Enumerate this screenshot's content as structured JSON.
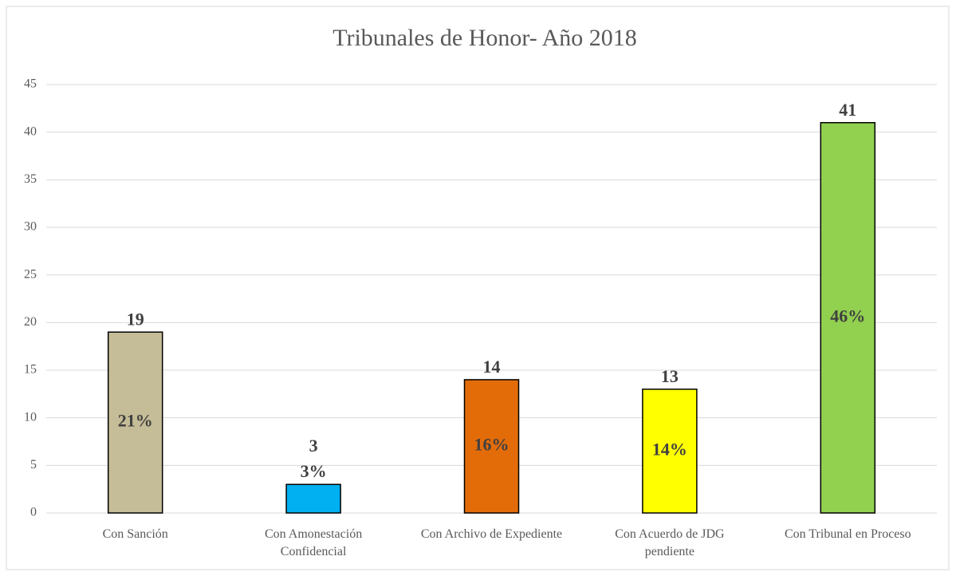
{
  "chart_data": {
    "type": "bar",
    "title": "Tribunales de Honor- Año 2018",
    "categories": [
      "Con Sanción",
      "Con Amonestación Confidencial",
      "Con Archivo de Expediente",
      "Con Acuerdo de JDG pendiente",
      "Con Tribunal en Proceso"
    ],
    "values": [
      19,
      3,
      14,
      13,
      41
    ],
    "colors": [
      "#c4bd97",
      "#00b0f0",
      "#e36c09",
      "#ffff00",
      "#92d050"
    ],
    "percent_labels": [
      "21%",
      "3%",
      "16%",
      "14%",
      "46%"
    ],
    "ylim": [
      0,
      45
    ],
    "yticks": [
      0,
      5,
      10,
      15,
      20,
      25,
      30,
      35,
      40,
      45
    ],
    "grid": true
  }
}
